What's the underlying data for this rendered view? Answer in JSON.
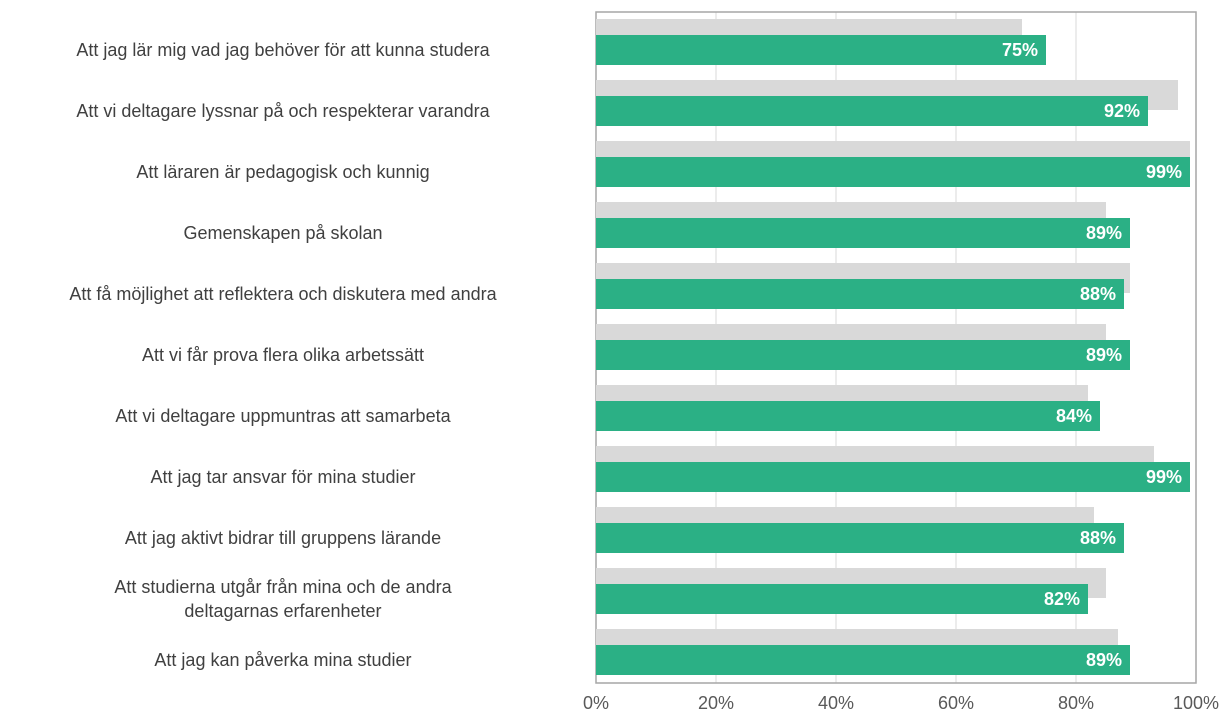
{
  "chart_data": {
    "type": "bar",
    "orientation": "horizontal",
    "categories": [
      "Att jag lär mig vad jag behöver för att kunna studera",
      "Att vi deltagare lyssnar på och respekterar varandra",
      "Att läraren är pedagogisk och kunnig",
      "Gemenskapen på skolan",
      "Att få möjlighet att reflektera och diskutera med andra",
      "Att vi får prova flera olika arbetssätt",
      "Att vi deltagare uppmuntras att samarbeta",
      "Att jag tar ansvar för mina studier",
      "Att jag aktivt bidrar till gruppens lärande",
      "Att studierna utgår från mina och de andra\ndeltagarnas erfarenheter",
      "Att jag kan påverka mina studier"
    ],
    "series": [
      {
        "color": "#d9d9d9",
        "values": [
          71,
          97,
          99,
          85,
          89,
          85,
          82,
          93,
          83,
          85,
          87
        ]
      },
      {
        "color": "#2bb085",
        "values": [
          75,
          92,
          99,
          89,
          88,
          89,
          84,
          99,
          88,
          82,
          89
        ],
        "value_labels": [
          "75%",
          "92%",
          "99%",
          "89%",
          "88%",
          "89%",
          "84%",
          "99%",
          "88%",
          "82%",
          "89%"
        ]
      }
    ],
    "xlim": [
      0,
      100
    ],
    "xticks": [
      {
        "value": 0,
        "label": "0%"
      },
      {
        "value": 20,
        "label": "20%"
      },
      {
        "value": 40,
        "label": "40%"
      },
      {
        "value": 60,
        "label": "60%"
      },
      {
        "value": 80,
        "label": "80%"
      },
      {
        "value": 100,
        "label": "100%"
      }
    ],
    "grid": true
  }
}
